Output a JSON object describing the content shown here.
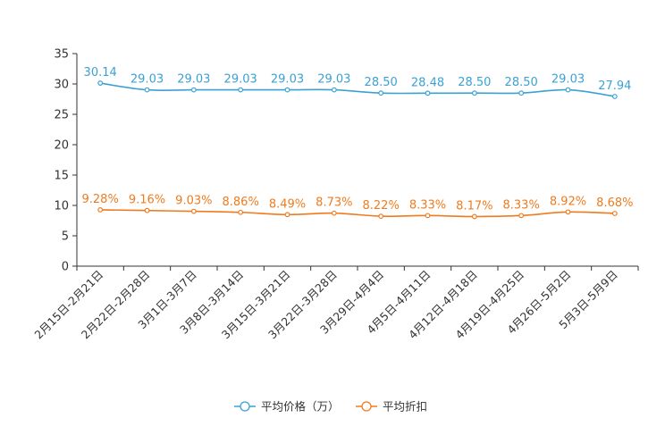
{
  "chart_data": {
    "type": "line",
    "title": "",
    "xlabel": "",
    "ylabel": "",
    "ylim": [
      0,
      35
    ],
    "yticks": [
      0,
      5,
      10,
      15,
      20,
      25,
      30,
      35
    ],
    "grid": false,
    "legend_position": "bottom-center",
    "categories": [
      "2月15日-2月21日",
      "2月22日-2月28日",
      "3月1日-3月7日",
      "3月8日-3月14日",
      "3月15日-3月21日",
      "3月22日-3月28日",
      "3月29日-4月4日",
      "4月5日-4月11日",
      "4月12日-4月18日",
      "4月19日-4月25日",
      "4月26日-5月2日",
      "5月3日-5月9日"
    ],
    "series": [
      {
        "name": "平均价格（万）",
        "color": "#3ba1d4",
        "values": [
          30.14,
          29.03,
          29.03,
          29.03,
          29.03,
          29.03,
          28.5,
          28.48,
          28.5,
          28.5,
          29.03,
          27.94
        ],
        "labels": [
          "30.14",
          "29.03",
          "29.03",
          "29.03",
          "29.03",
          "29.03",
          "28.50",
          "28.48",
          "28.50",
          "28.50",
          "29.03",
          "27.94"
        ]
      },
      {
        "name": "平均折扣",
        "color": "#f07b1e",
        "values": [
          9.28,
          9.16,
          9.03,
          8.86,
          8.49,
          8.73,
          8.22,
          8.33,
          8.17,
          8.33,
          8.92,
          8.68
        ],
        "labels": [
          "9.28%",
          "9.16%",
          "9.03%",
          "8.86%",
          "8.49%",
          "8.73%",
          "8.22%",
          "8.33%",
          "8.17%",
          "8.33%",
          "8.92%",
          "8.68%"
        ]
      }
    ]
  }
}
